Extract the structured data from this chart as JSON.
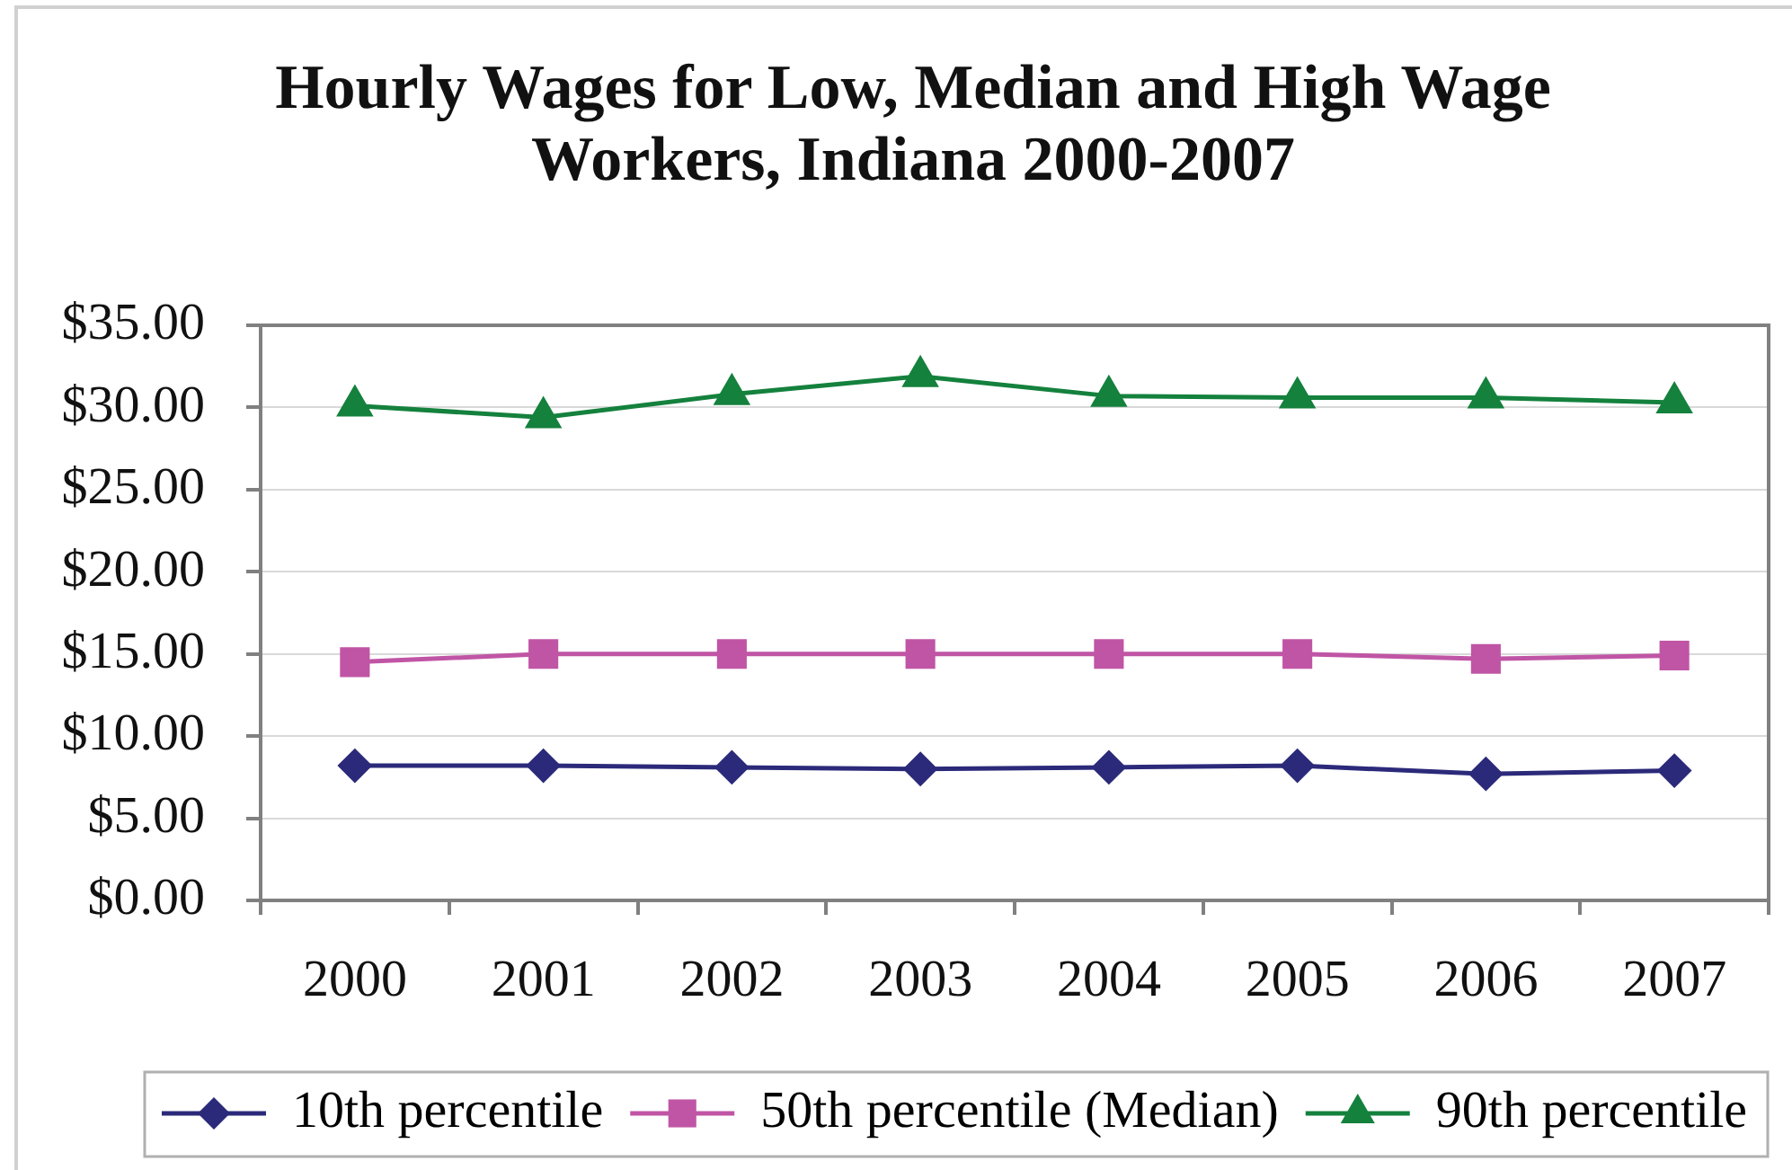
{
  "chart_data": {
    "type": "line",
    "title": "Hourly Wages for Low, Median and High Wage Workers, Indiana 2000-2007",
    "categories": [
      "2000",
      "2001",
      "2002",
      "2003",
      "2004",
      "2005",
      "2006",
      "2007"
    ],
    "series": [
      {
        "name": "10th percentile",
        "color": "#2b2a7a",
        "marker": "diamond",
        "values": [
          8.2,
          8.2,
          8.1,
          8.0,
          8.1,
          8.2,
          7.7,
          7.9
        ]
      },
      {
        "name": "50th percentile (Median)",
        "color": "#c055a5",
        "marker": "square",
        "values": [
          14.5,
          15.0,
          15.0,
          15.0,
          15.0,
          15.0,
          14.7,
          14.9
        ]
      },
      {
        "name": "90th percentile",
        "color": "#14813d",
        "marker": "triangle",
        "values": [
          30.1,
          29.4,
          30.8,
          31.9,
          30.7,
          30.6,
          30.6,
          30.3
        ]
      }
    ],
    "ylim": [
      0,
      35
    ],
    "yticks": [
      {
        "value": 0,
        "label": "$0.00"
      },
      {
        "value": 5,
        "label": "$5.00"
      },
      {
        "value": 10,
        "label": "$10.00"
      },
      {
        "value": 15,
        "label": "$15.00"
      },
      {
        "value": 20,
        "label": "$20.00"
      },
      {
        "value": 25,
        "label": "$25.00"
      },
      {
        "value": 30,
        "label": "$30.00"
      },
      {
        "value": 35,
        "label": "$35.00"
      }
    ],
    "grid": "y",
    "legend": "bottom"
  }
}
